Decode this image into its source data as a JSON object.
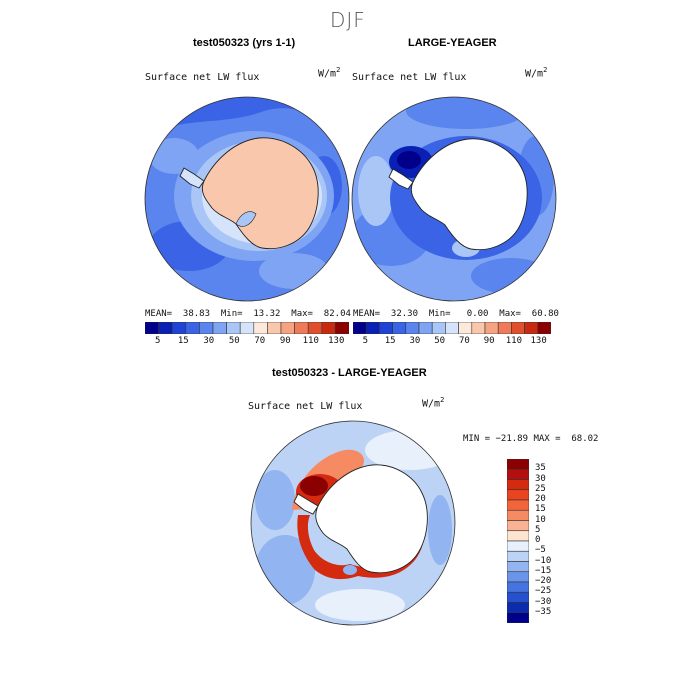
{
  "page": {
    "title": "DJF"
  },
  "panels": {
    "top_left": {
      "title": "test050323 (yrs 1-1)",
      "variable": "Surface net LW flux",
      "units_base": "W/m",
      "units_exp": "2",
      "stats": "MEAN=  38.83  Min=  13.32  Max=  82.04"
    },
    "top_right": {
      "title": "LARGE-YEAGER",
      "variable": "Surface net LW flux",
      "units_base": "W/m",
      "units_exp": "2",
      "stats": "MEAN=  32.30  Min=   0.00  Max=  60.80"
    },
    "bottom": {
      "title": "test050323 - LARGE-YEAGER",
      "variable": "Surface net LW flux",
      "units_base": "W/m",
      "units_exp": "2",
      "stats": "MIN = −21.89 MAX =  68.02"
    }
  },
  "chart_data": [
    {
      "type": "heatmap",
      "projection": "south-polar-stereographic",
      "title": "test050323 (yrs 1-1)",
      "variable": "Surface net LW flux",
      "units": "W/m2",
      "stats": {
        "mean": 38.83,
        "min": 13.32,
        "max": 82.04
      },
      "colorbar": {
        "orientation": "horizontal",
        "levels": [
          5,
          10,
          15,
          20,
          30,
          40,
          50,
          60,
          70,
          80,
          90,
          100,
          110,
          120,
          130
        ],
        "tick_labels": [
          "5",
          "15",
          "30",
          "50",
          "70",
          "90",
          "110",
          "130"
        ],
        "colors": [
          "#00008b",
          "#0a1fb4",
          "#1f43d6",
          "#3a63e6",
          "#5a84ee",
          "#7ea4f3",
          "#a9c6f7",
          "#d6e4fb",
          "#fde8dc",
          "#f9c7ac",
          "#f6a382",
          "#ef7a59",
          "#e0502f",
          "#c72a10",
          "#8b0000"
        ]
      }
    },
    {
      "type": "heatmap",
      "projection": "south-polar-stereographic",
      "title": "LARGE-YEAGER",
      "variable": "Surface net LW flux",
      "units": "W/m2",
      "stats": {
        "mean": 32.3,
        "min": 0.0,
        "max": 60.8
      },
      "colorbar": {
        "orientation": "horizontal",
        "levels": [
          5,
          10,
          15,
          20,
          30,
          40,
          50,
          60,
          70,
          80,
          90,
          100,
          110,
          120,
          130
        ],
        "tick_labels": [
          "5",
          "15",
          "30",
          "50",
          "70",
          "90",
          "110",
          "130"
        ],
        "colors": [
          "#00008b",
          "#0a1fb4",
          "#1f43d6",
          "#3a63e6",
          "#5a84ee",
          "#7ea4f3",
          "#a9c6f7",
          "#d6e4fb",
          "#fde8dc",
          "#f9c7ac",
          "#f6a382",
          "#ef7a59",
          "#e0502f",
          "#c72a10",
          "#8b0000"
        ]
      }
    },
    {
      "type": "heatmap",
      "projection": "south-polar-stereographic",
      "title": "test050323 - LARGE-YEAGER",
      "variable": "Surface net LW flux",
      "units": "W/m2",
      "stats": {
        "min": -21.89,
        "max": 68.02
      },
      "colorbar": {
        "orientation": "vertical",
        "levels": [
          -35,
          -30,
          -25,
          -20,
          -15,
          -10,
          -5,
          0,
          5,
          10,
          15,
          20,
          25,
          30,
          35
        ],
        "tick_labels": [
          "35",
          "30",
          "25",
          "20",
          "15",
          "10",
          "5",
          "0",
          "−5",
          "−10",
          "−15",
          "−20",
          "−25",
          "−30",
          "−35"
        ],
        "colors": [
          "#8b0000",
          "#b40f0f",
          "#d42a10",
          "#e9441f",
          "#f2653a",
          "#f68b63",
          "#f9b294",
          "#fde4d0",
          "#e8f0fb",
          "#bcd3f6",
          "#92b4f0",
          "#6a94e9",
          "#4574e0",
          "#2550d0",
          "#0c2cb0",
          "#00008b"
        ]
      }
    }
  ]
}
